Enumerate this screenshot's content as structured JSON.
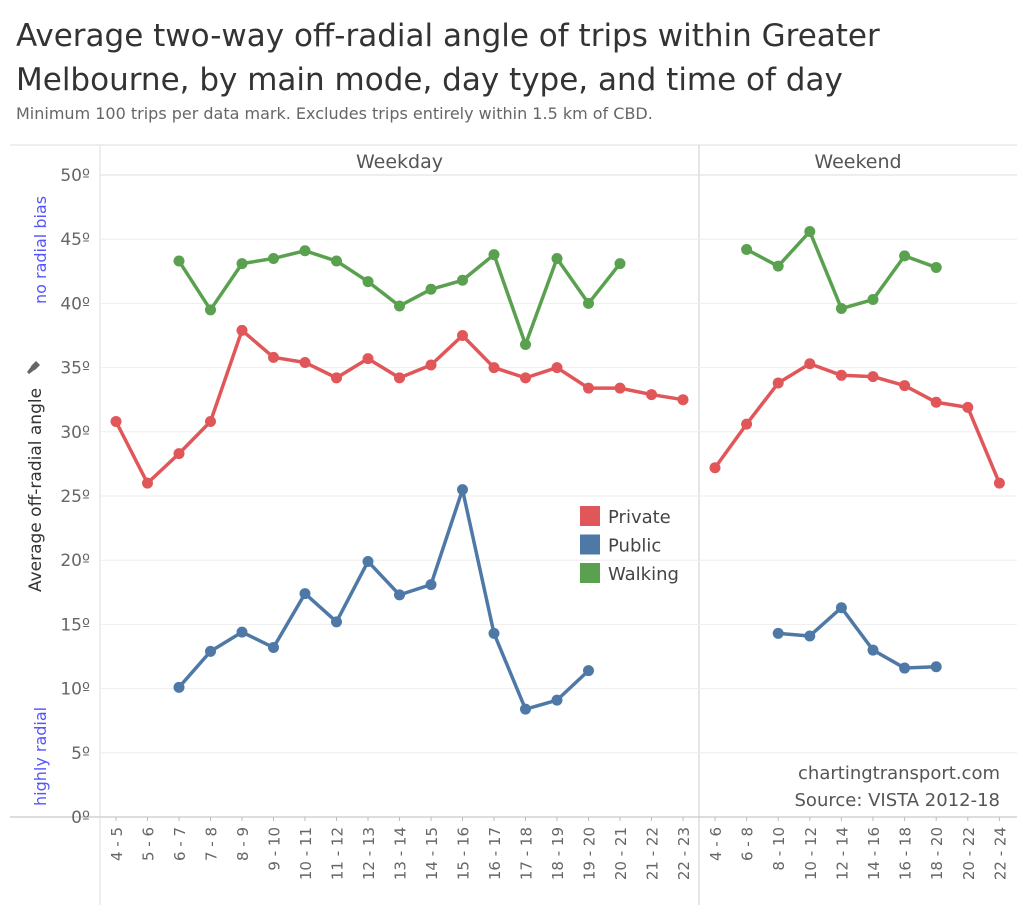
{
  "title": "Average two-way off-radial angle of trips within Greater Melbourne, by main mode, day type, and time of day",
  "subtitle": "Minimum 100 trips per data mark.  Excludes trips entirely within 1.5 km of CBD.",
  "annotations": {
    "top": "no radial bias",
    "bottom": "highly radial",
    "credit": "chartingtransport.com",
    "source": "Source: VISTA 2012-18"
  },
  "colors": {
    "Private": "#e15759",
    "Public": "#4e79a7",
    "Walking": "#59a14f"
  },
  "chart_data": {
    "type": "line",
    "ylabel": "Average off-radial angle",
    "ylim": [
      0,
      50
    ],
    "yticks": [
      "0º",
      "5º",
      "10º",
      "15º",
      "20º",
      "25º",
      "30º",
      "35º",
      "40º",
      "45º",
      "50º"
    ],
    "legend": {
      "position": "center-right",
      "entries": [
        "Private",
        "Public",
        "Walking"
      ]
    },
    "grid": true,
    "panels": [
      {
        "name": "Weekday",
        "categories": [
          "4 - 5",
          "5 - 6",
          "6 - 7",
          "7 - 8",
          "8 - 9",
          "9 - 10",
          "10 - 11",
          "11 - 12",
          "12 - 13",
          "13 - 14",
          "14 - 15",
          "15 - 16",
          "16 - 17",
          "17 - 18",
          "18 - 19",
          "19 - 20",
          "20 - 21",
          "21 - 22",
          "22 - 23"
        ],
        "series": [
          {
            "name": "Private",
            "values": [
              30.8,
              26.0,
              28.3,
              30.8,
              37.9,
              35.8,
              35.4,
              34.2,
              35.7,
              34.2,
              35.2,
              37.5,
              35.0,
              34.2,
              35.0,
              33.4,
              33.4,
              32.9,
              32.5
            ]
          },
          {
            "name": "Public",
            "values": [
              null,
              null,
              10.1,
              12.9,
              14.4,
              13.2,
              17.4,
              15.2,
              19.9,
              17.3,
              18.1,
              25.5,
              14.3,
              8.4,
              9.1,
              11.4,
              null,
              null,
              null
            ]
          },
          {
            "name": "Walking",
            "values": [
              null,
              null,
              43.3,
              39.5,
              43.1,
              43.5,
              44.1,
              43.3,
              41.7,
              39.8,
              41.1,
              41.8,
              43.8,
              36.8,
              43.5,
              40.0,
              43.1,
              null,
              null
            ]
          }
        ]
      },
      {
        "name": "Weekend",
        "categories": [
          "4 - 6",
          "6 - 8",
          "8 - 10",
          "10 - 12",
          "12 - 14",
          "14 - 16",
          "16 - 18",
          "18 - 20",
          "20 - 22",
          "22 - 24"
        ],
        "series": [
          {
            "name": "Private",
            "values": [
              27.2,
              30.6,
              33.8,
              35.3,
              34.4,
              34.3,
              33.6,
              32.3,
              31.9,
              26.0
            ]
          },
          {
            "name": "Public",
            "values": [
              null,
              null,
              14.3,
              14.1,
              16.3,
              13.0,
              11.6,
              11.7,
              null,
              null
            ]
          },
          {
            "name": "Walking",
            "values": [
              null,
              44.2,
              42.9,
              45.6,
              39.6,
              40.3,
              43.7,
              42.8,
              null,
              null
            ]
          }
        ]
      }
    ]
  }
}
